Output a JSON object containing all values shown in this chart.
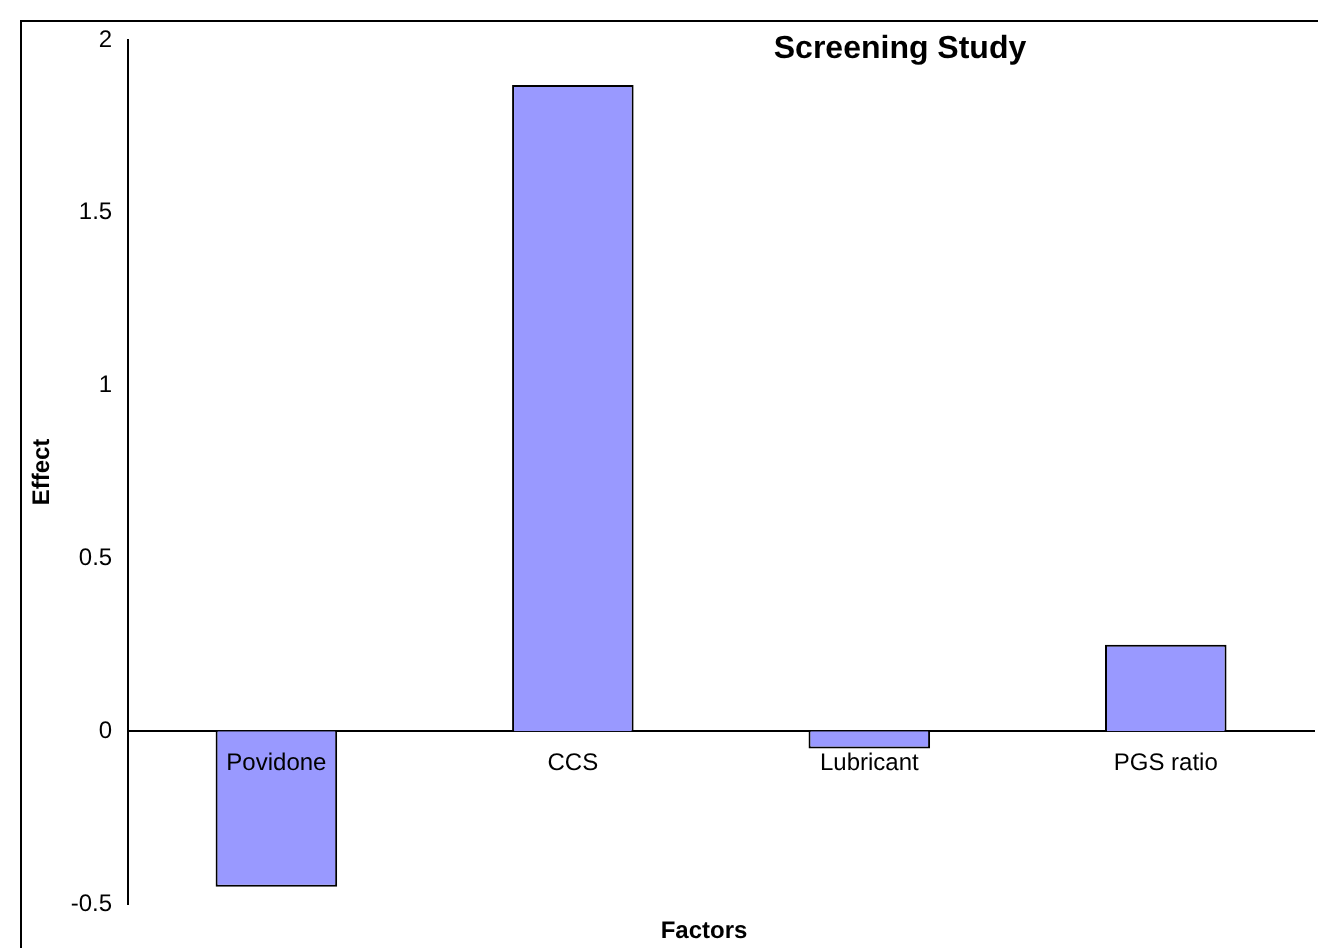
{
  "chart_data": {
    "type": "bar",
    "title": "Screening Study",
    "xlabel": "Factors",
    "ylabel": "Effect",
    "categories": [
      "Povidone",
      "CCS",
      "Lubricant",
      "PGS ratio"
    ],
    "values": [
      -0.45,
      1.87,
      -0.05,
      0.25
    ],
    "color": "#9999ff",
    "ylim": [
      -0.5,
      2
    ],
    "yticks": [
      -0.5,
      0,
      0.5,
      1,
      1.5,
      2
    ],
    "grid": false,
    "legend": false
  }
}
